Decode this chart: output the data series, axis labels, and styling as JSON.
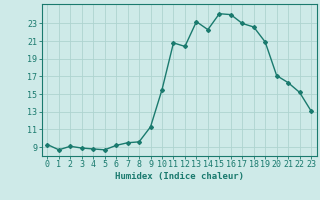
{
  "x": [
    0,
    1,
    2,
    3,
    4,
    5,
    6,
    7,
    8,
    9,
    10,
    11,
    12,
    13,
    14,
    15,
    16,
    17,
    18,
    19,
    20,
    21,
    22,
    23
  ],
  "y": [
    9.3,
    8.7,
    9.1,
    8.9,
    8.8,
    8.7,
    9.2,
    9.5,
    9.6,
    11.3,
    15.5,
    20.8,
    20.4,
    23.2,
    22.3,
    24.1,
    24.0,
    23.0,
    22.6,
    20.9,
    17.1,
    16.3,
    15.2,
    13.1
  ],
  "line_color": "#1a7a6e",
  "marker": "D",
  "markersize": 2.0,
  "linewidth": 1.0,
  "bg_color": "#ceeae8",
  "grid_color": "#aed4d0",
  "xlabel": "Humidex (Indice chaleur)",
  "yticks": [
    9,
    11,
    13,
    15,
    17,
    19,
    21,
    23
  ],
  "xtick_labels": [
    "0",
    "1",
    "2",
    "3",
    "4",
    "5",
    "6",
    "7",
    "8",
    "9",
    "10",
    "11",
    "12",
    "13",
    "14",
    "15",
    "16",
    "17",
    "18",
    "19",
    "20",
    "21",
    "22",
    "23"
  ],
  "xlim": [
    -0.5,
    23.5
  ],
  "ylim": [
    8.0,
    25.2
  ],
  "xlabel_fontsize": 6.5,
  "tick_fontsize": 6.0,
  "label_color": "#1a7a6e"
}
